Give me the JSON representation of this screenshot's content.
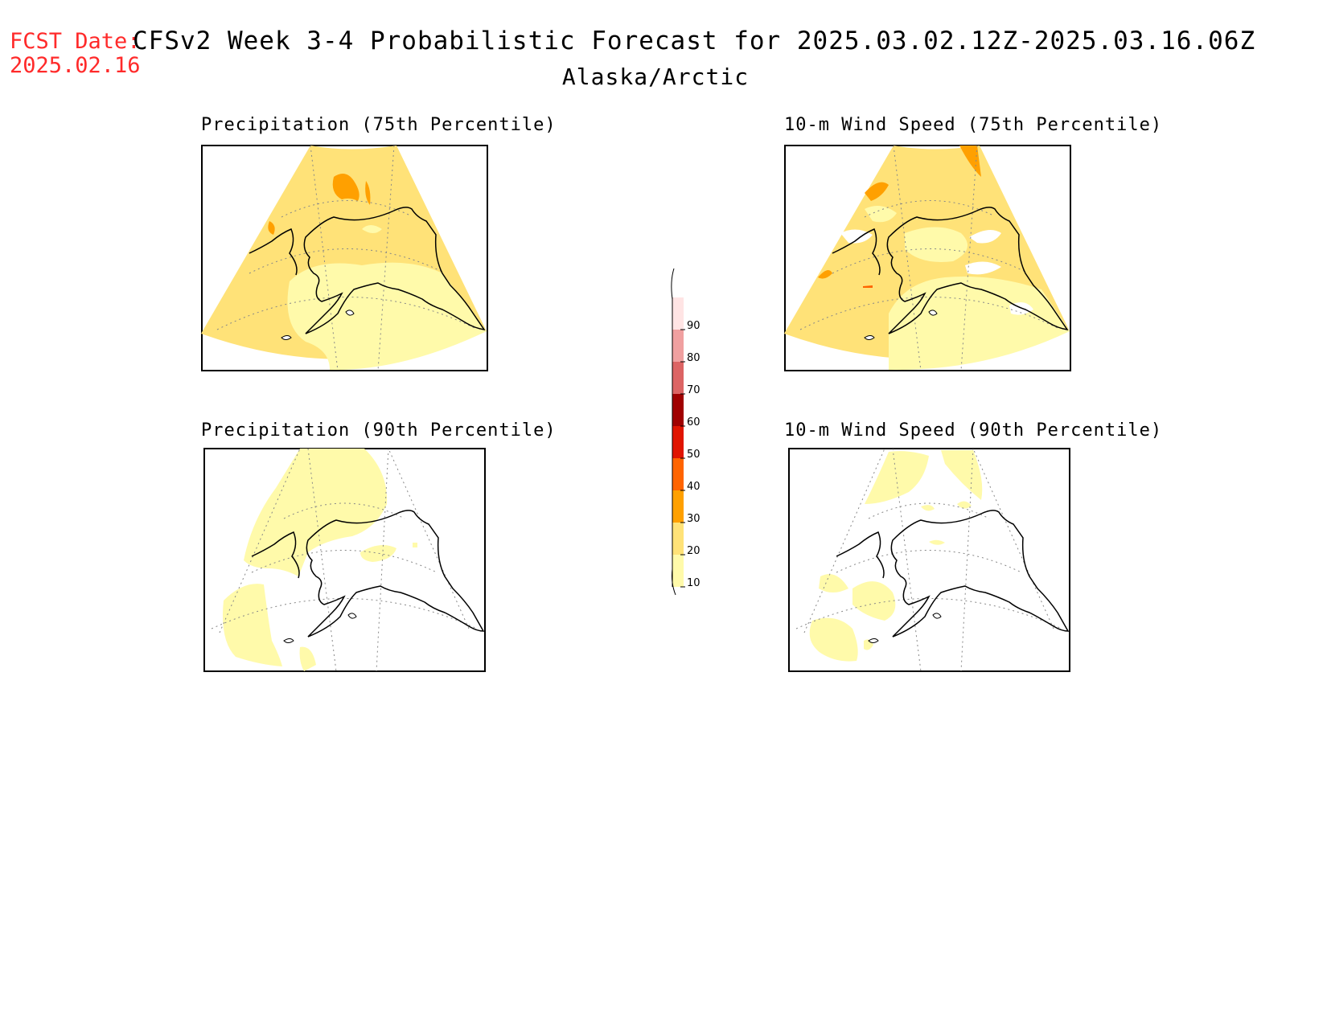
{
  "header": {
    "fcst_label": "FCST Date:",
    "fcst_date": "2025.02.16",
    "title": "CFSv2 Week 3-4 Probabilistic Forecast for 2025.03.02.12Z-2025.03.16.06Z",
    "region": "Alaska/Arctic"
  },
  "panels": [
    {
      "id": "precip75",
      "title": "Precipitation (75th Percentile)",
      "base_category": "20-30"
    },
    {
      "id": "wind75",
      "title": "10-m Wind Speed (75th Percentile)",
      "base_category": "20-30"
    },
    {
      "id": "precip90",
      "title": "Precipitation (90th Percentile)",
      "base_category": "below-10"
    },
    {
      "id": "wind90",
      "title": "10-m Wind Speed (90th Percentile)",
      "base_category": "below-10"
    }
  ],
  "colorbar": {
    "tick_labels": [
      "90",
      "80",
      "70",
      "60",
      "50",
      "40",
      "30",
      "20",
      "10"
    ],
    "bins": [
      {
        "range": "90-100",
        "color": "#ffe4e4"
      },
      {
        "range": "80-90",
        "color": "#f0a0a0"
      },
      {
        "range": "70-80",
        "color": "#dc6464"
      },
      {
        "range": "60-70",
        "color": "#a00000"
      },
      {
        "range": "50-60",
        "color": "#e01400"
      },
      {
        "range": "40-50",
        "color": "#ff6400"
      },
      {
        "range": "30-40",
        "color": "#ffa000"
      },
      {
        "range": "20-30",
        "color": "#ffe278"
      },
      {
        "range": "10-20",
        "color": "#fffaaa"
      }
    ]
  },
  "colors": {
    "title_red": "#ff2a2a",
    "prob_10_20": "#fffaaa",
    "prob_20_30": "#ffe278",
    "prob_30_40": "#ffa000",
    "prob_40_50": "#ff6400"
  }
}
